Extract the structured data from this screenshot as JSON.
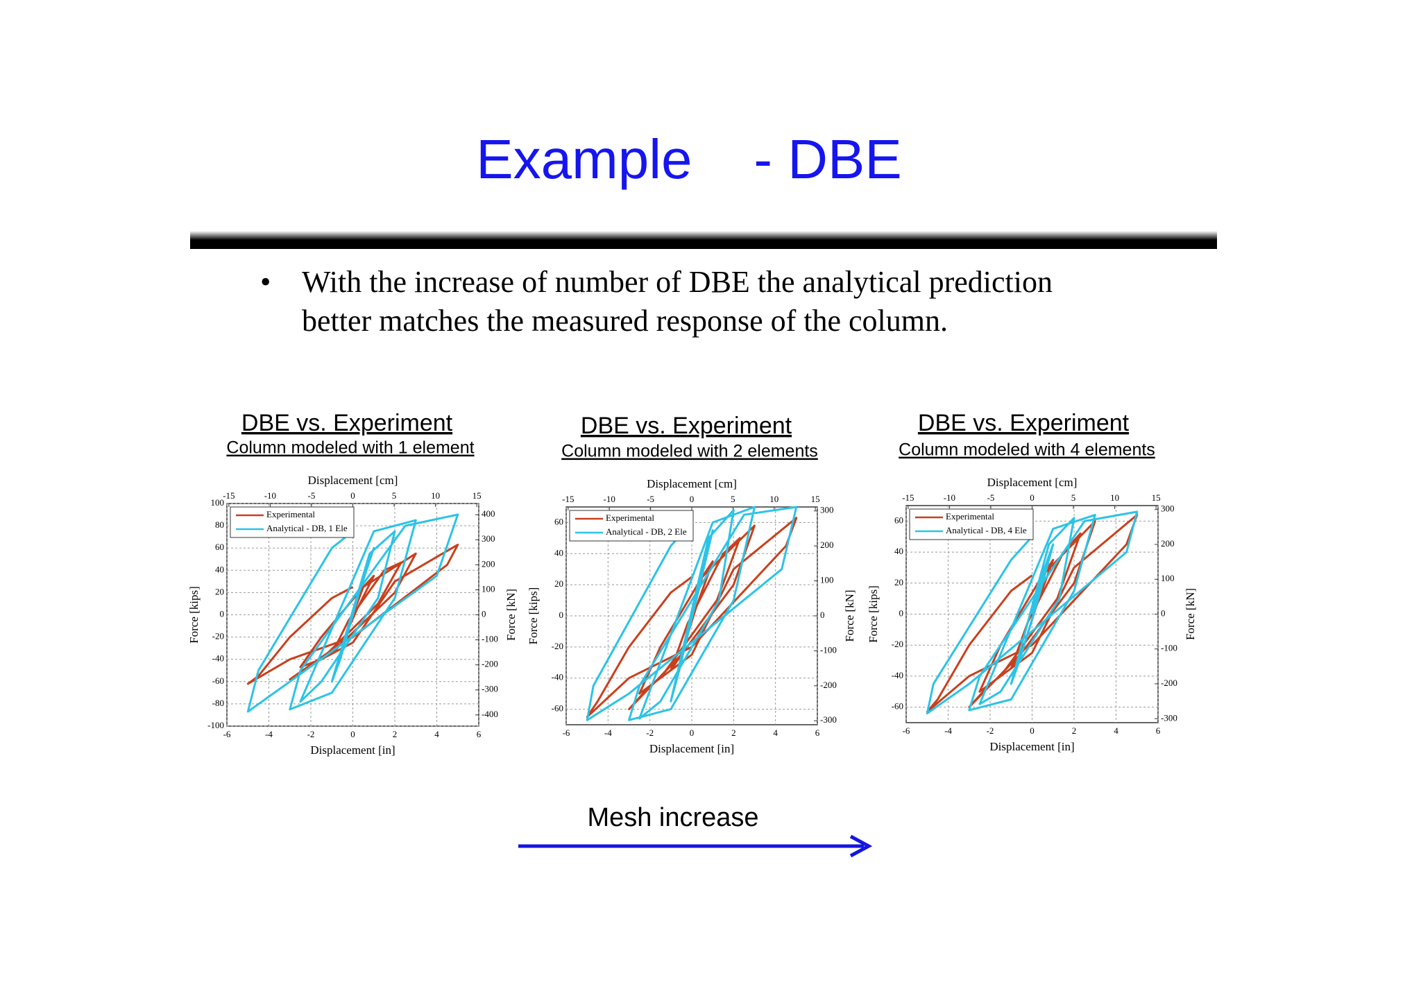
{
  "title": "Example    - DBE",
  "bullet": {
    "marker": "•",
    "lines": [
      "With the increase of number of DBE the analytical prediction",
      "better matches the measured response of the column."
    ]
  },
  "arrow_label": "Mesh increase",
  "chart_data": [
    {
      "type": "line",
      "title": "DBE vs. Experiment",
      "subtitle": "Column modeled with 1 element",
      "xlabel": "Displacement [in]",
      "x2label": "Displacement [cm]",
      "ylabel": "Force [kips]",
      "y2label": "Force [kN]",
      "xlim": [
        -6,
        6
      ],
      "xticks": [
        -6,
        -4,
        -2,
        0,
        2,
        4,
        6
      ],
      "x2lim": [
        -15.24,
        15.24
      ],
      "x2ticks": [
        -15,
        -10,
        -5,
        0,
        5,
        10,
        15
      ],
      "ylim": [
        -100,
        100
      ],
      "yticks": [
        -100,
        -80,
        -60,
        -40,
        -20,
        0,
        20,
        40,
        60,
        80,
        100
      ],
      "y2lim": [
        -444.8,
        444.8
      ],
      "y2ticks": [
        -400,
        -300,
        -200,
        -100,
        0,
        100,
        200,
        300,
        400
      ],
      "grid": true,
      "legend": "upper-left",
      "series": [
        {
          "name": "Experimental",
          "color": "#c8401e",
          "x": [
            0,
            0.5,
            1,
            0.2,
            -0.5,
            -1,
            -0.2,
            1.5,
            2.3,
            1.2,
            -1.5,
            -2.5,
            -1.5,
            0.5,
            3,
            2,
            -0.5,
            -3,
            -2,
            0,
            2,
            5,
            4.5,
            0,
            -3,
            -5,
            -4.5,
            -3,
            -1,
            0
          ],
          "values": [
            0,
            25,
            35,
            5,
            -25,
            -35,
            -5,
            40,
            47,
            10,
            -40,
            -47,
            -20,
            25,
            55,
            20,
            -25,
            -58,
            -45,
            -25,
            30,
            63,
            45,
            -20,
            -40,
            -62,
            -55,
            -20,
            15,
            25
          ]
        },
        {
          "name": "Analytical - DB, 1 Ele",
          "color": "#2cc3e6",
          "x": [
            0,
            0.6,
            1,
            0.3,
            -0.6,
            -1,
            0.8,
            2,
            1.2,
            -1.5,
            -2.5,
            1,
            3,
            2,
            -1,
            -3,
            -2.5,
            2.5,
            5,
            4,
            -3,
            -5,
            -4.5,
            -1,
            0
          ],
          "values": [
            0,
            40,
            60,
            20,
            -40,
            -60,
            55,
            75,
            15,
            -60,
            -78,
            75,
            85,
            15,
            -70,
            -85,
            -50,
            80,
            90,
            35,
            -60,
            -87,
            -50,
            60,
            75
          ]
        }
      ]
    },
    {
      "type": "line",
      "title": "DBE vs. Experiment",
      "subtitle": "Column modeled with 2 elements",
      "xlabel": "Displacement [in]",
      "x2label": "Displacement [cm]",
      "ylabel": "Force [kips]",
      "y2label": "Force [kN]",
      "xlim": [
        -6,
        6
      ],
      "xticks": [
        -6,
        -4,
        -2,
        0,
        2,
        4,
        6
      ],
      "x2lim": [
        -15.24,
        15.24
      ],
      "x2ticks": [
        -15,
        -10,
        -5,
        0,
        5,
        10,
        15
      ],
      "ylim": [
        -70,
        70
      ],
      "yticks": [
        -60,
        -40,
        -20,
        0,
        20,
        40,
        60
      ],
      "y2lim": [
        -311.4,
        311.4
      ],
      "y2ticks": [
        -300,
        -200,
        -100,
        0,
        100,
        200,
        300
      ],
      "grid": true,
      "legend": "upper-left",
      "series": [
        {
          "name": "Experimental",
          "color": "#c8401e",
          "x": [
            0,
            0.5,
            1,
            0.2,
            -0.5,
            -1,
            -0.2,
            1.5,
            2.3,
            1.2,
            -1.5,
            -2.5,
            -1.5,
            0.5,
            3,
            2,
            -0.5,
            -3,
            -2,
            0,
            2,
            5,
            4.5,
            0,
            -3,
            -5,
            -4.5,
            -3,
            -1,
            0
          ],
          "values": [
            0,
            25,
            35,
            5,
            -25,
            -35,
            -5,
            40,
            50,
            10,
            -40,
            -50,
            -20,
            25,
            58,
            20,
            -25,
            -60,
            -45,
            -25,
            30,
            63,
            45,
            -20,
            -40,
            -65,
            -55,
            -20,
            15,
            25
          ]
        },
        {
          "name": "Analytical - DB, 2 Ele",
          "color": "#2cc3e6",
          "x": [
            0,
            0.6,
            1,
            0.3,
            -0.6,
            -1,
            0.8,
            2,
            1.3,
            -1.5,
            -2.5,
            1,
            3,
            2,
            -1,
            -3,
            -2.5,
            2.5,
            5,
            4.3,
            -3,
            -5,
            -4.7,
            -1,
            0
          ],
          "values": [
            0,
            35,
            55,
            15,
            -35,
            -55,
            50,
            68,
            10,
            -55,
            -66,
            60,
            70,
            10,
            -60,
            -67,
            -45,
            65,
            70,
            30,
            -50,
            -67,
            -45,
            45,
            60
          ]
        }
      ]
    },
    {
      "type": "line",
      "title": "DBE vs. Experiment",
      "subtitle": "Column modeled with 4 elements",
      "xlabel": "Displacement [in]",
      "x2label": "Displacement [cm]",
      "ylabel": "Force [kips]",
      "y2label": "Force [kN]",
      "xlim": [
        -6,
        6
      ],
      "xticks": [
        -6,
        -4,
        -2,
        0,
        2,
        4,
        6
      ],
      "x2lim": [
        -15.24,
        15.24
      ],
      "x2ticks": [
        -15,
        -10,
        -5,
        0,
        5,
        10,
        15
      ],
      "ylim": [
        -70,
        70
      ],
      "yticks": [
        -60,
        -40,
        -20,
        0,
        20,
        40,
        60
      ],
      "y2lim": [
        -311.4,
        311.4
      ],
      "y2ticks": [
        -300,
        -200,
        -100,
        0,
        100,
        200,
        300
      ],
      "grid": true,
      "legend": "upper-left",
      "series": [
        {
          "name": "Experimental",
          "color": "#c8401e",
          "x": [
            0,
            0.5,
            1,
            0.2,
            -0.5,
            -1,
            -0.2,
            1.5,
            2.3,
            1.2,
            -1.5,
            -2.5,
            -1.5,
            0.5,
            3,
            2,
            -0.5,
            -3,
            -2,
            0,
            2,
            5,
            4.5,
            0,
            -3,
            -5,
            -4.5,
            -3,
            -1,
            0
          ],
          "values": [
            0,
            25,
            35,
            5,
            -25,
            -35,
            -5,
            40,
            52,
            10,
            -40,
            -50,
            -20,
            25,
            60,
            20,
            -25,
            -60,
            -45,
            -25,
            30,
            64,
            45,
            -20,
            -40,
            -63,
            -55,
            -20,
            15,
            25
          ]
        },
        {
          "name": "Analytical - DB, 4 Ele",
          "color": "#2cc3e6",
          "x": [
            0,
            0.6,
            1,
            0.3,
            -0.6,
            -1,
            0.8,
            2,
            1.3,
            -1.5,
            -2.5,
            1,
            3,
            2,
            -1,
            -3,
            -2.5,
            2.5,
            5,
            4.5,
            -3,
            -5,
            -4.7,
            -1,
            0
          ],
          "values": [
            0,
            30,
            45,
            10,
            -30,
            -45,
            45,
            62,
            10,
            -50,
            -58,
            55,
            64,
            15,
            -55,
            -62,
            -40,
            60,
            66,
            40,
            -45,
            -64,
            -45,
            35,
            50
          ]
        }
      ]
    }
  ]
}
